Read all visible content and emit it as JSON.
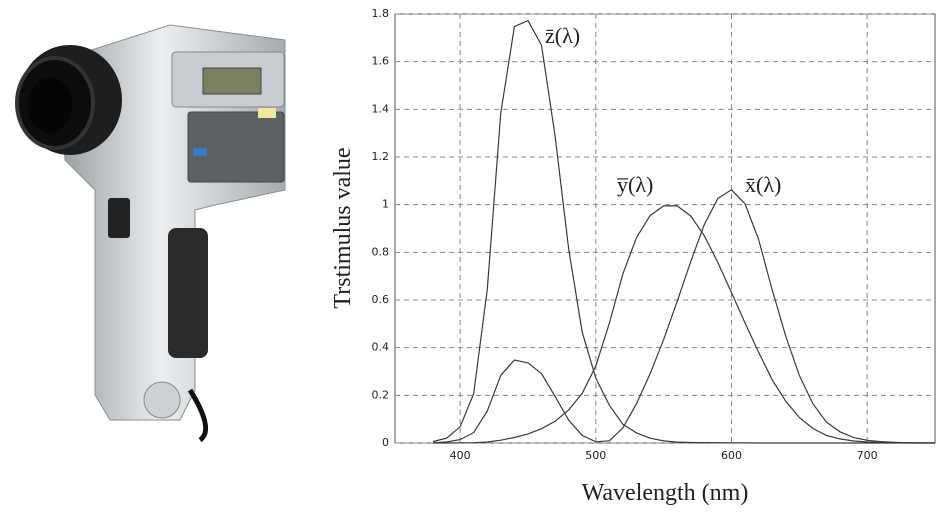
{
  "chart_data": {
    "type": "line",
    "xlabel": "Wavelength (nm)",
    "ylabel": "Trstimulus value",
    "x": [
      380,
      390,
      400,
      410,
      420,
      430,
      440,
      450,
      460,
      470,
      480,
      490,
      500,
      510,
      520,
      530,
      540,
      550,
      560,
      570,
      580,
      590,
      600,
      610,
      620,
      630,
      640,
      650,
      660,
      670,
      680,
      690,
      700,
      710,
      720,
      730,
      740,
      750
    ],
    "series": [
      {
        "name": "x̄(λ)",
        "color": "#3a3a3a",
        "values": [
          0.0014,
          0.0042,
          0.0143,
          0.0435,
          0.1344,
          0.2839,
          0.3483,
          0.3362,
          0.2908,
          0.1954,
          0.0956,
          0.032,
          0.0049,
          0.0093,
          0.0633,
          0.1655,
          0.2904,
          0.4334,
          0.5945,
          0.7621,
          0.9163,
          1.0263,
          1.0622,
          1.0026,
          0.8544,
          0.6424,
          0.4479,
          0.2835,
          0.1649,
          0.0874,
          0.0468,
          0.0227,
          0.0114,
          0.0058,
          0.0029,
          0.0014,
          0.0007,
          0.0003
        ]
      },
      {
        "name": "y̅(λ)",
        "color": "#3a3a3a",
        "values": [
          0,
          0.0001,
          0.0004,
          0.0012,
          0.004,
          0.0116,
          0.023,
          0.038,
          0.06,
          0.091,
          0.139,
          0.208,
          0.323,
          0.503,
          0.71,
          0.862,
          0.954,
          0.995,
          0.995,
          0.952,
          0.87,
          0.757,
          0.631,
          0.503,
          0.381,
          0.265,
          0.175,
          0.107,
          0.061,
          0.032,
          0.017,
          0.0082,
          0.0041,
          0.0021,
          0.001,
          0.0005,
          0.0002,
          0.0001
        ]
      },
      {
        "name": "z̄(λ)",
        "color": "#3a3a3a",
        "values": [
          0.0065,
          0.0201,
          0.0679,
          0.2074,
          0.6456,
          1.3856,
          1.7471,
          1.7721,
          1.6692,
          1.2876,
          0.813,
          0.4652,
          0.272,
          0.1582,
          0.0782,
          0.0422,
          0.0203,
          0.0087,
          0.0039,
          0.0021,
          0.0017,
          0.0011,
          0.0008,
          0.0003,
          0.0002,
          0,
          0,
          0,
          0,
          0,
          0,
          0,
          0,
          0,
          0,
          0,
          0,
          0
        ]
      }
    ],
    "xlim": [
      352,
      750
    ],
    "ylim": [
      0,
      1.8
    ],
    "xticks": [
      400,
      500,
      600,
      700
    ],
    "yticks": [
      0,
      0.2,
      0.4,
      0.6,
      0.8,
      1,
      1.2,
      1.4,
      1.6,
      1.8
    ],
    "grid": true
  }
}
